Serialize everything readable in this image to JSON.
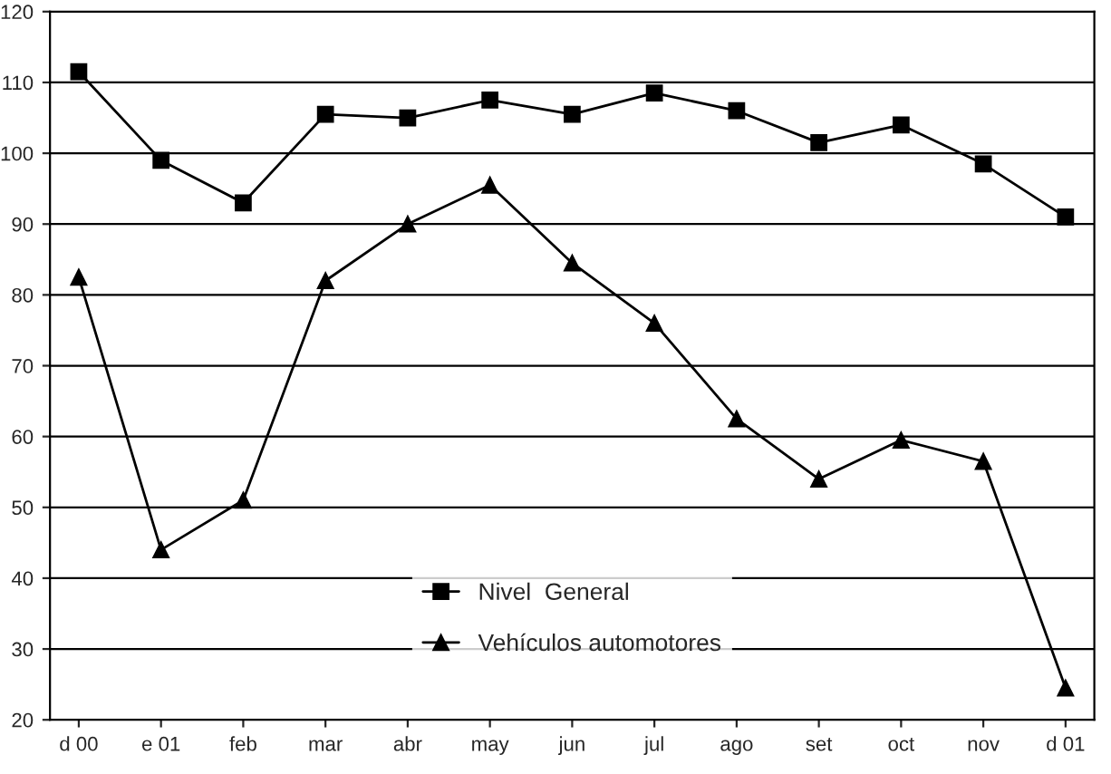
{
  "chart_data": {
    "type": "line",
    "categories": [
      "d 00",
      "e 01",
      "feb",
      "mar",
      "abr",
      "may",
      "jun",
      "jul",
      "ago",
      "set",
      "oct",
      "nov",
      "d 01"
    ],
    "series": [
      {
        "name": "Nivel  General",
        "color": "#000000",
        "marker": "square",
        "values": [
          111.5,
          99,
          93,
          105.5,
          105,
          107.5,
          105.5,
          108.5,
          106,
          101.5,
          104,
          98.5,
          91
        ]
      },
      {
        "name": "Vehículos automotores",
        "color": "#000000",
        "marker": "triangle",
        "values": [
          82.5,
          44,
          51,
          82,
          90,
          95.5,
          84.5,
          76,
          62.5,
          54,
          59.5,
          56.5,
          24.5
        ]
      }
    ],
    "ylim": [
      20,
      120
    ],
    "yticks": [
      20,
      30,
      40,
      50,
      60,
      70,
      80,
      90,
      100,
      110,
      120
    ],
    "grid": "y",
    "legend": "bottom",
    "line_style": "solid"
  }
}
